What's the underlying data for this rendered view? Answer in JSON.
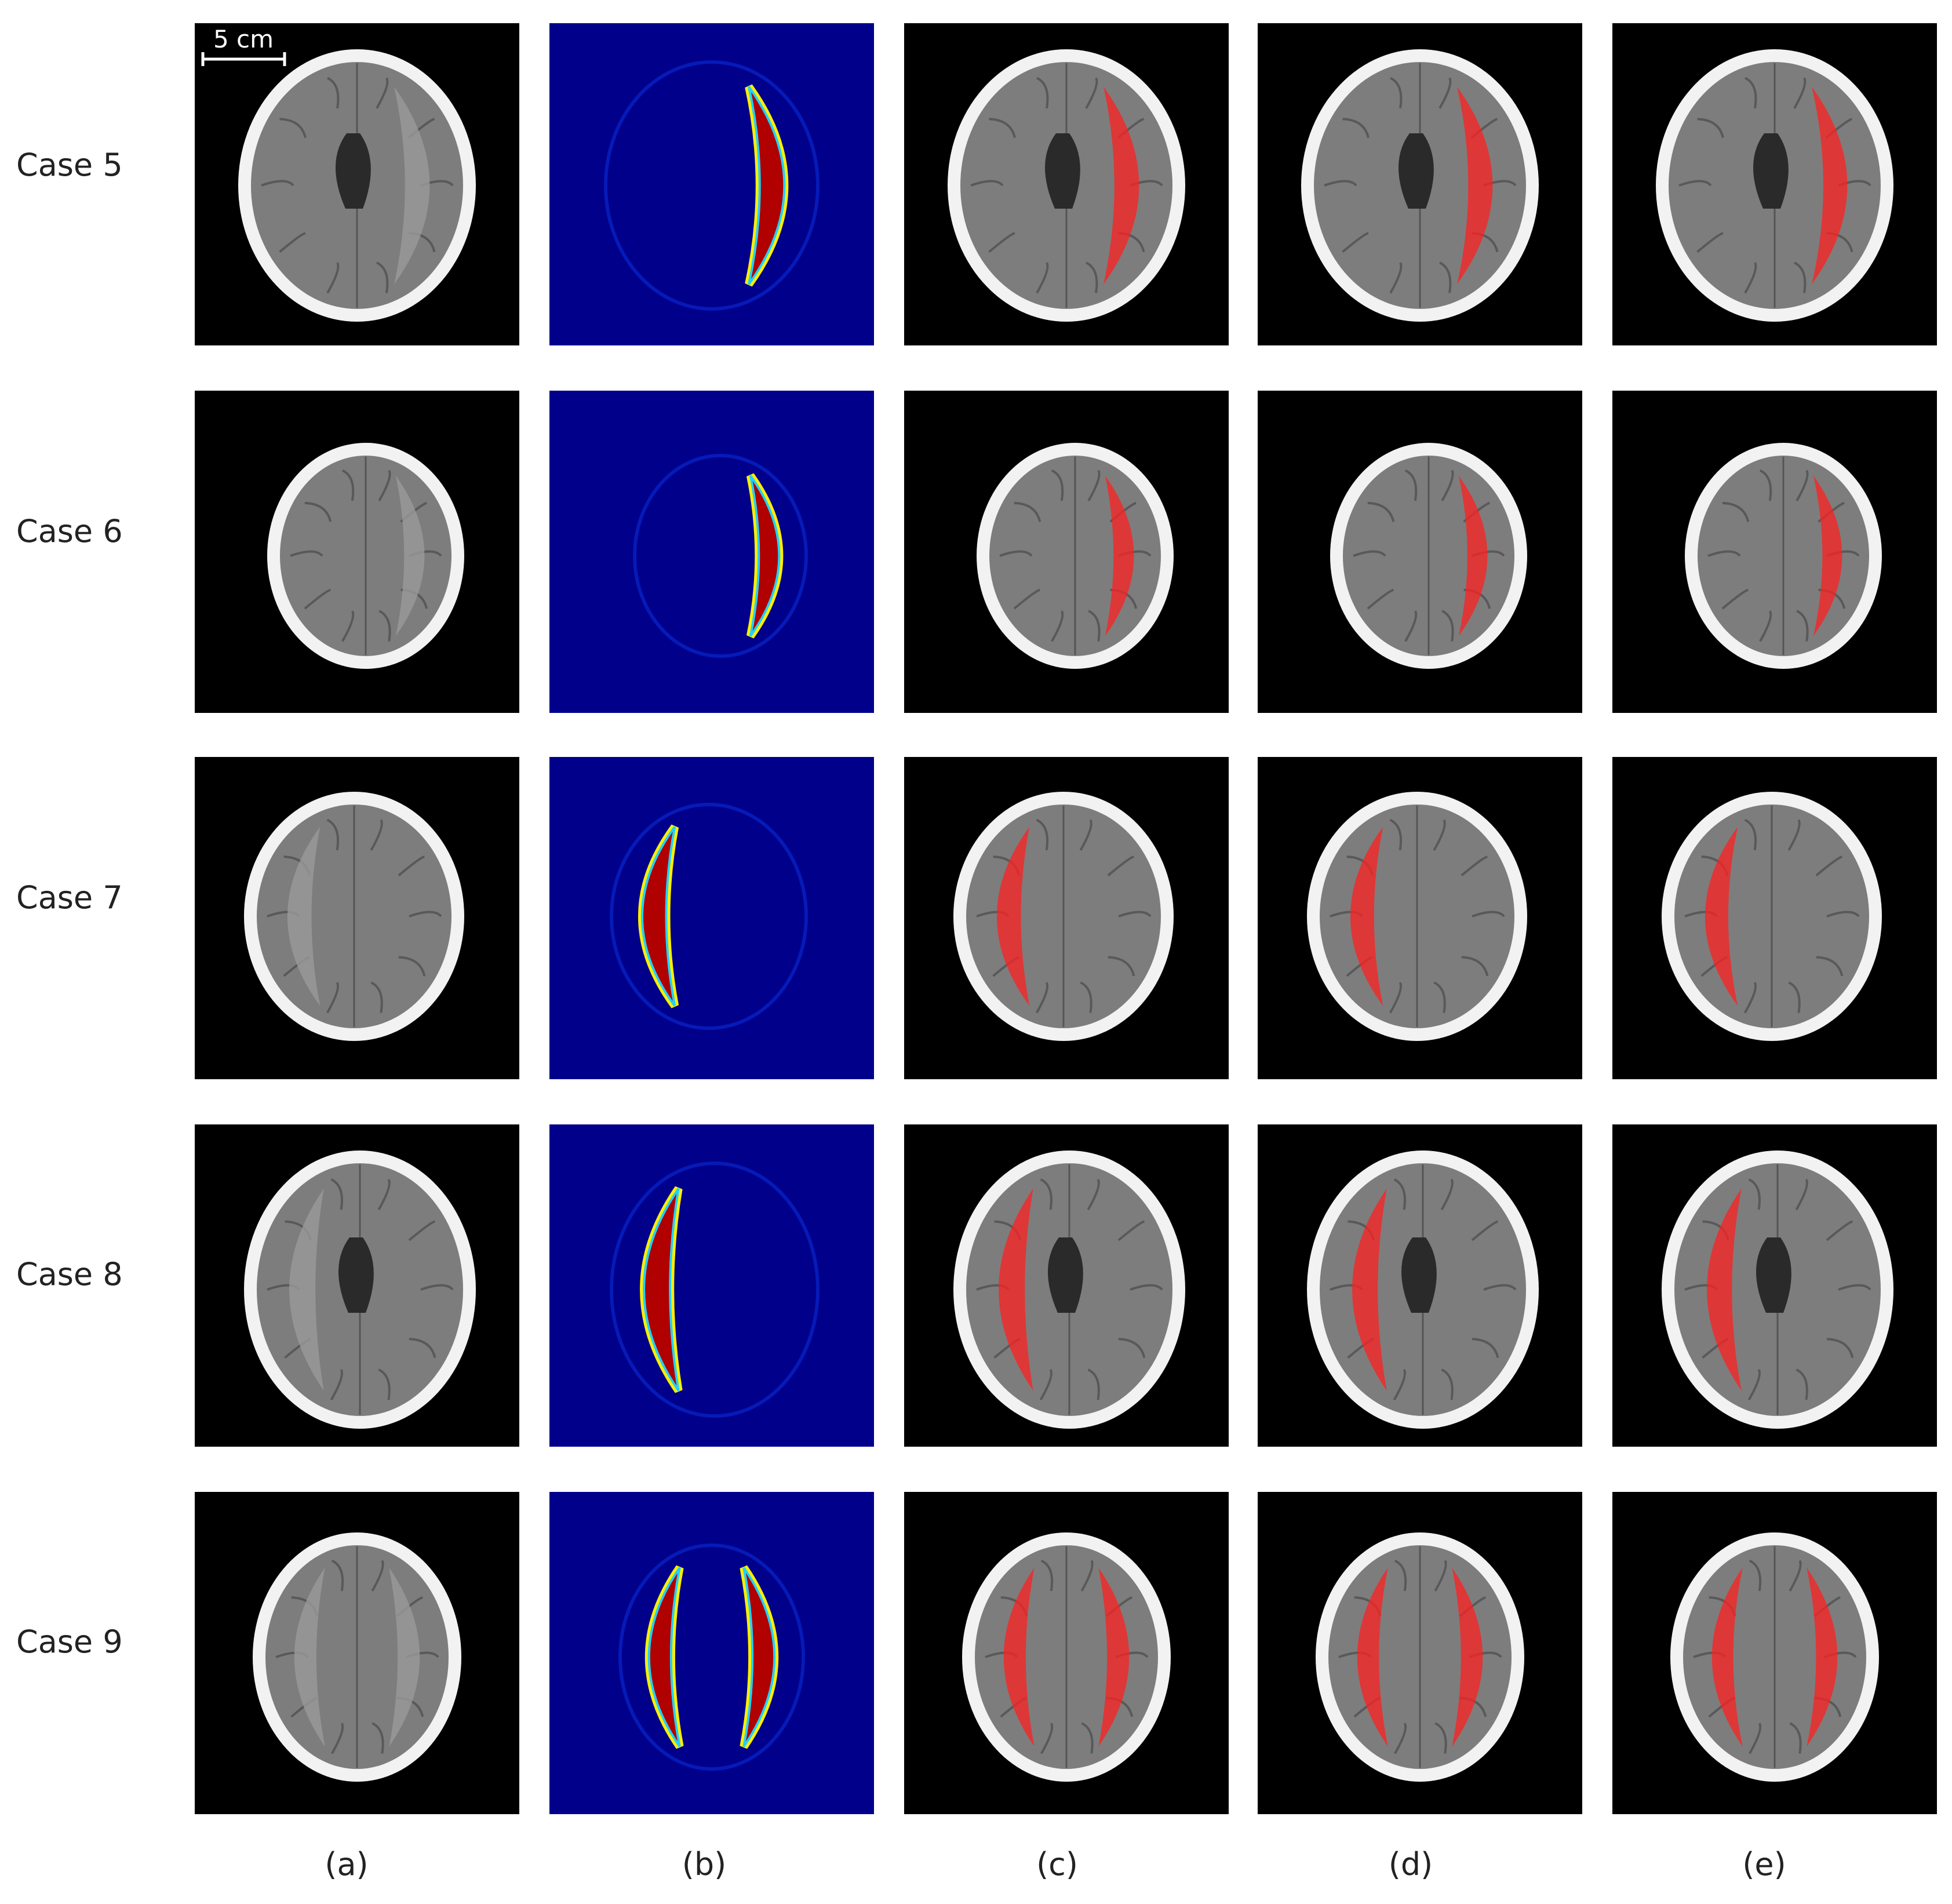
{
  "rows": [
    {
      "label": "Case 5"
    },
    {
      "label": "Case 6"
    },
    {
      "label": "Case 7"
    },
    {
      "label": "Case 8"
    },
    {
      "label": "Case 9"
    }
  ],
  "columns": [
    {
      "label": "(a)"
    },
    {
      "label": "(b)"
    },
    {
      "label": "(c)"
    },
    {
      "label": "(d)"
    },
    {
      "label": "(e)"
    }
  ],
  "scale_bar": {
    "label": "5 cm"
  },
  "colors": {
    "ct_background": "#000000",
    "heatmap_background": "#00008b",
    "hematoma_overlay": "#ff2020",
    "heatmap_high": "#b00000"
  }
}
